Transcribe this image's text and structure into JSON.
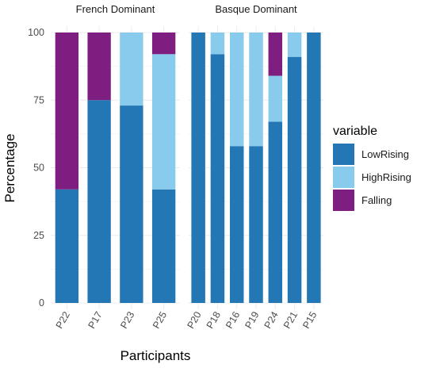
{
  "chart_data": {
    "type": "bar",
    "stacked": true,
    "xlabel": "Participants",
    "ylabel": "Percentage",
    "ylim": [
      0,
      100
    ],
    "yticks": [
      0,
      25,
      50,
      75,
      100
    ],
    "grid": true,
    "legend": {
      "title": "variable",
      "placement": "right",
      "entries": [
        "LowRising",
        "HighRising",
        "Falling"
      ]
    },
    "colors": {
      "LowRising": "#2277b4",
      "HighRising": "#89cbec",
      "Falling": "#7e1e80"
    },
    "facets": [
      {
        "title": "French Dominant",
        "categories": [
          "P22",
          "P17",
          "P23",
          "P25"
        ],
        "series": [
          {
            "name": "LowRising",
            "values": [
              42,
              75,
              73,
              42
            ]
          },
          {
            "name": "HighRising",
            "values": [
              0,
              0,
              27,
              50
            ]
          },
          {
            "name": "Falling",
            "values": [
              58,
              25,
              0,
              8
            ]
          }
        ]
      },
      {
        "title": "Basque Dominant",
        "categories": [
          "P20",
          "P18",
          "P16",
          "P19",
          "P24",
          "P21",
          "P15"
        ],
        "series": [
          {
            "name": "LowRising",
            "values": [
              100,
              92,
              58,
              58,
              67,
              91,
              100
            ]
          },
          {
            "name": "HighRising",
            "values": [
              0,
              8,
              42,
              42,
              17,
              9,
              0
            ]
          },
          {
            "name": "Falling",
            "values": [
              0,
              0,
              0,
              0,
              16,
              0,
              0
            ]
          }
        ]
      }
    ]
  }
}
